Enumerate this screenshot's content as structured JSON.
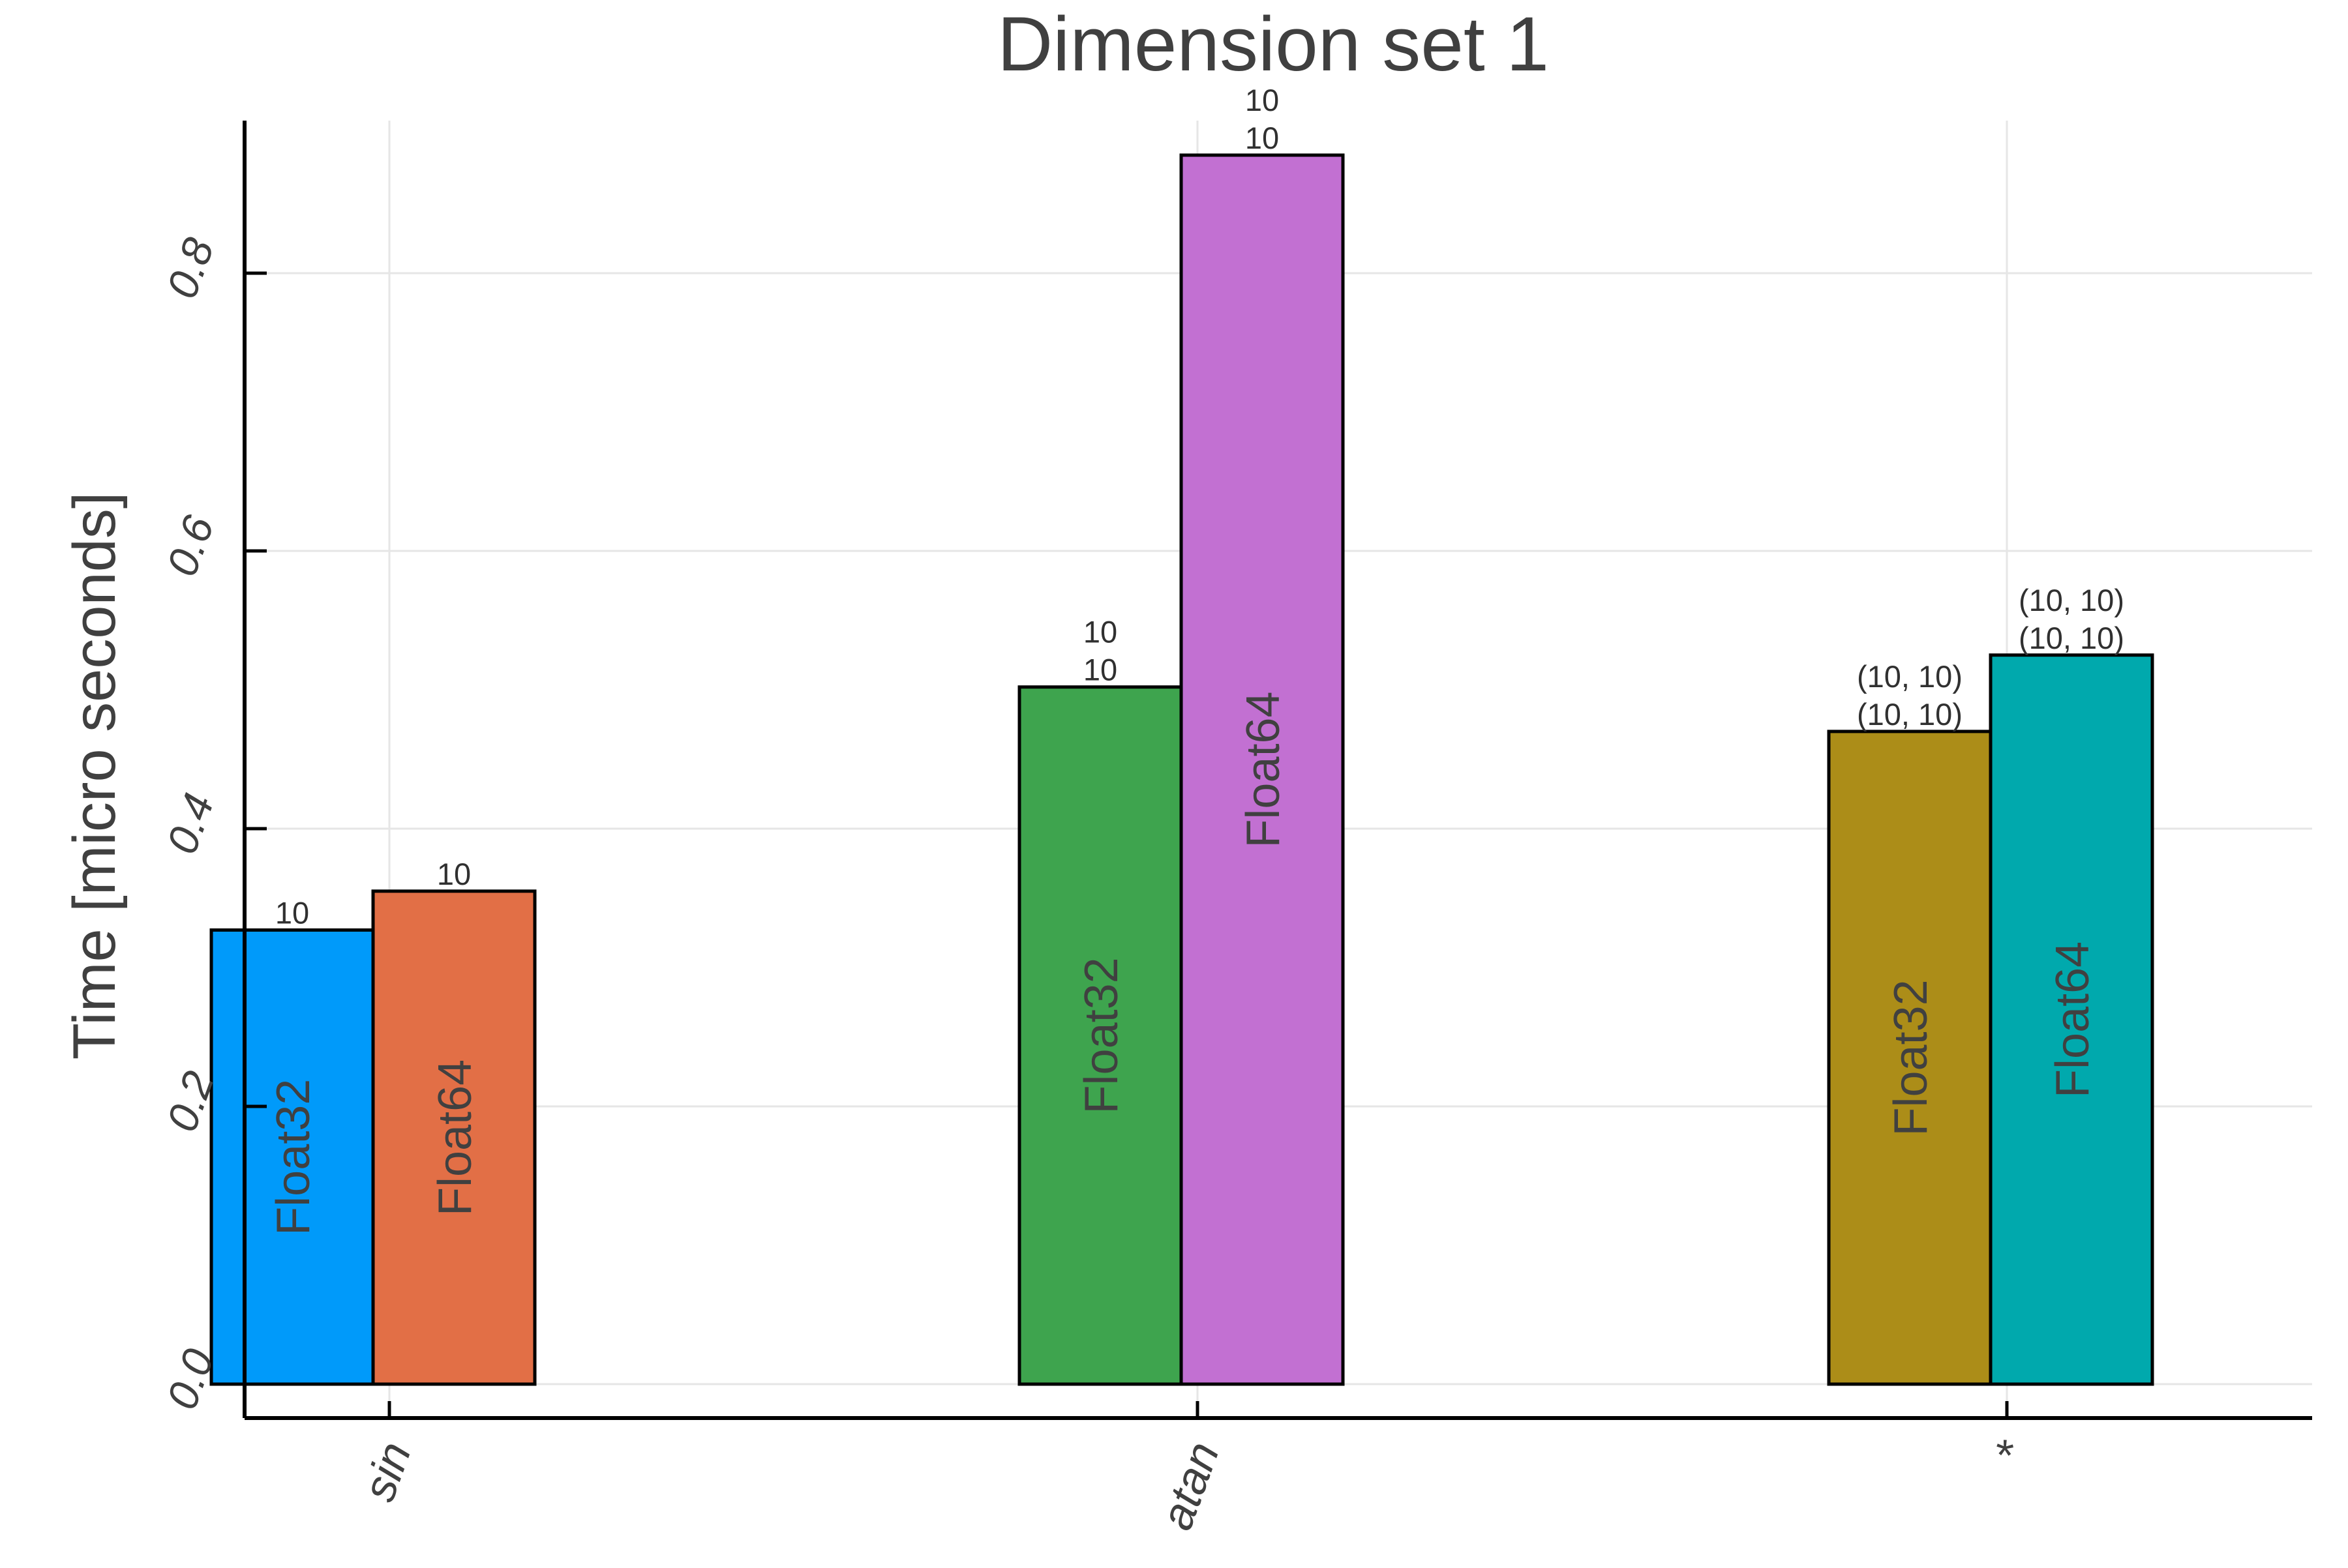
{
  "chart_data": {
    "type": "bar",
    "title": "Dimension set 1",
    "xlabel": "",
    "ylabel": "Time [micro seconds]",
    "ylim": [
      0,
      0.9
    ],
    "yticks": [
      "0.0",
      "0.2",
      "0.4",
      "0.6",
      "0.8"
    ],
    "categories": [
      "sin",
      "atan",
      "*"
    ],
    "grid": true,
    "legend": "none",
    "bars": [
      {
        "category": "sin",
        "label": "Float32",
        "value": 0.327,
        "annotation": [
          "10"
        ],
        "color": "#009AFA"
      },
      {
        "category": "sin",
        "label": "Float64",
        "value": 0.355,
        "annotation": [
          "10"
        ],
        "color": "#E26F46"
      },
      {
        "category": "atan",
        "label": "Float32",
        "value": 0.502,
        "annotation": [
          "10",
          "10"
        ],
        "color": "#3EA44E"
      },
      {
        "category": "atan",
        "label": "Float64",
        "value": 0.885,
        "annotation": [
          "10",
          "10"
        ],
        "color": "#C270D2"
      },
      {
        "category": "*",
        "label": "Float32",
        "value": 0.47,
        "annotation": [
          "(10, 10)",
          "(10, 10)"
        ],
        "color": "#AC8D18"
      },
      {
        "category": "*",
        "label": "Float64",
        "value": 0.525,
        "annotation": [
          "(10, 10)",
          "(10, 10)"
        ],
        "color": "#00A9AD"
      }
    ]
  }
}
